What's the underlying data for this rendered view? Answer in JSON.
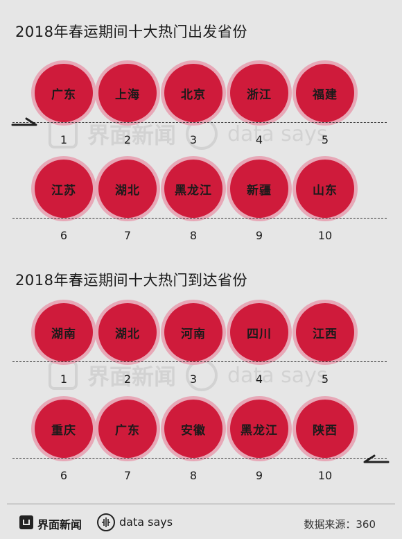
{
  "departure": {
    "title": "2018年春运期间十大热门出发省份",
    "rows": [
      [
        {
          "name": "广东",
          "rank": "1"
        },
        {
          "name": "上海",
          "rank": "2"
        },
        {
          "name": "北京",
          "rank": "3"
        },
        {
          "name": "浙江",
          "rank": "4"
        },
        {
          "name": "福建",
          "rank": "5"
        }
      ],
      [
        {
          "name": "江苏",
          "rank": "6"
        },
        {
          "name": "湖北",
          "rank": "7"
        },
        {
          "name": "黑龙江",
          "rank": "8"
        },
        {
          "name": "新疆",
          "rank": "9"
        },
        {
          "name": "山东",
          "rank": "10"
        }
      ]
    ]
  },
  "arrival": {
    "title": "2018年春运期间十大热门到达省份",
    "rows": [
      [
        {
          "name": "湖南",
          "rank": "1"
        },
        {
          "name": "湖北",
          "rank": "2"
        },
        {
          "name": "河南",
          "rank": "3"
        },
        {
          "name": "四川",
          "rank": "4"
        },
        {
          "name": "江西",
          "rank": "5"
        }
      ],
      [
        {
          "name": "重庆",
          "rank": "6"
        },
        {
          "name": "广东",
          "rank": "7"
        },
        {
          "name": "安徽",
          "rank": "8"
        },
        {
          "name": "黑龙江",
          "rank": "9"
        },
        {
          "name": "陕西",
          "rank": "10"
        }
      ]
    ]
  },
  "watermark": {
    "brand_cn": "界面新闻",
    "brand_en": "data says"
  },
  "footer": {
    "brand_cn": "界面新闻",
    "brand_en": "data says",
    "source": "数据来源：360"
  },
  "colors": {
    "circle_fill": "#cf1b3b",
    "circle_ring": "#e7a8b7",
    "background": "#e6e6e6"
  },
  "icons": {
    "arrow_departure": "left-arrow-icon",
    "arrow_arrival": "left-arrow-icon",
    "brand_logo": "jiemian-logo-icon",
    "data_says_logo": "data-says-icon"
  }
}
